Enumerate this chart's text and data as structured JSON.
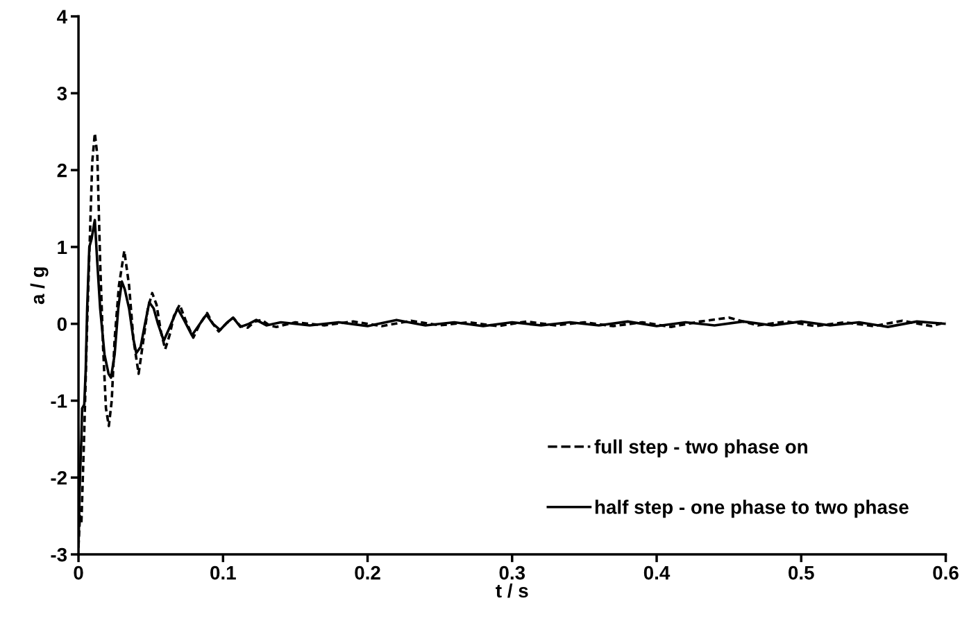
{
  "chart_data": {
    "type": "line",
    "xlabel": "t / s",
    "ylabel": "a / g",
    "xlim": [
      0,
      0.6
    ],
    "xticks": [
      0,
      0.1,
      0.2,
      0.3,
      0.4,
      0.5,
      0.6
    ],
    "ylim": [
      -3,
      4
    ],
    "yticks": [
      -3,
      -2,
      -1,
      0,
      1,
      2,
      3,
      4
    ],
    "grid": false,
    "legend": "bottom right",
    "marker": "none",
    "series": [
      {
        "name": "full step - two phase on",
        "color": "#000000",
        "line_style": "dashed",
        "x": [
          0,
          0.001,
          0.002,
          0.004,
          0.006,
          0.008,
          0.0095,
          0.0113,
          0.013,
          0.015,
          0.017,
          0.019,
          0.021,
          0.023,
          0.025,
          0.028,
          0.0317,
          0.035,
          0.038,
          0.0416,
          0.045,
          0.048,
          0.051,
          0.054,
          0.057,
          0.06,
          0.063,
          0.066,
          0.07,
          0.074,
          0.0794,
          0.084,
          0.089,
          0.093,
          0.097,
          0.102,
          0.107,
          0.112,
          0.117,
          0.122,
          0.127,
          0.132,
          0.137,
          0.15,
          0.17,
          0.19,
          0.21,
          0.23,
          0.25,
          0.27,
          0.29,
          0.31,
          0.33,
          0.35,
          0.37,
          0.39,
          0.41,
          0.43,
          0.45,
          0.47,
          0.49,
          0.51,
          0.53,
          0.55,
          0.57,
          0.59,
          0.6
        ],
        "values": [
          -2.9,
          -2.5,
          -2.6,
          -1.4,
          0.0,
          1.2,
          2.1,
          2.48,
          2.2,
          0.8,
          -0.3,
          -1.1,
          -1.33,
          -1.0,
          -0.2,
          0.5,
          0.95,
          0.5,
          -0.2,
          -0.65,
          -0.2,
          0.2,
          0.4,
          0.25,
          -0.1,
          -0.33,
          -0.15,
          0.1,
          0.25,
          0.05,
          -0.18,
          0.0,
          0.14,
          0.0,
          -0.1,
          0.0,
          0.08,
          -0.03,
          -0.05,
          0.03,
          0.05,
          -0.02,
          -0.04,
          0.02,
          -0.02,
          0.03,
          -0.03,
          0.04,
          -0.02,
          0.02,
          -0.03,
          0.03,
          -0.02,
          0.02,
          -0.03,
          0.02,
          -0.04,
          0.03,
          0.08,
          -0.02,
          0.03,
          -0.03,
          0.02,
          -0.03,
          0.04,
          -0.03,
          0.02
        ]
      },
      {
        "name": "half step - one phase to two phase",
        "color": "#000000",
        "line_style": "solid",
        "x": [
          0,
          0.001,
          0.002,
          0.0025,
          0.004,
          0.005,
          0.006,
          0.0075,
          0.009,
          0.0113,
          0.013,
          0.015,
          0.018,
          0.0208,
          0.0225,
          0.025,
          0.0275,
          0.03,
          0.032,
          0.035,
          0.038,
          0.04,
          0.043,
          0.046,
          0.049,
          0.052,
          0.055,
          0.059,
          0.063,
          0.0686,
          0.073,
          0.0785,
          0.084,
          0.0885,
          0.093,
          0.098,
          0.103,
          0.107,
          0.112,
          0.118,
          0.123,
          0.13,
          0.14,
          0.16,
          0.18,
          0.2,
          0.22,
          0.24,
          0.26,
          0.28,
          0.3,
          0.32,
          0.34,
          0.36,
          0.38,
          0.4,
          0.42,
          0.44,
          0.46,
          0.48,
          0.5,
          0.52,
          0.54,
          0.56,
          0.58,
          0.6
        ],
        "values": [
          -2.9,
          -2.0,
          -1.5,
          -1.1,
          -1.05,
          -0.6,
          0.2,
          1.0,
          1.1,
          1.35,
          0.8,
          0.2,
          -0.4,
          -0.65,
          -0.7,
          -0.4,
          0.2,
          0.55,
          0.45,
          0.2,
          -0.2,
          -0.38,
          -0.3,
          0.0,
          0.28,
          0.2,
          0.0,
          -0.22,
          -0.05,
          0.2,
          0.05,
          -0.15,
          0.0,
          0.12,
          0.0,
          -0.08,
          0.02,
          0.08,
          -0.04,
          0.0,
          0.05,
          -0.02,
          0.02,
          -0.02,
          0.02,
          -0.03,
          0.05,
          -0.02,
          0.02,
          -0.03,
          0.02,
          -0.02,
          0.02,
          -0.02,
          0.03,
          -0.03,
          0.02,
          -0.02,
          0.03,
          -0.02,
          0.03,
          -0.02,
          0.02,
          -0.04,
          0.03,
          0.0
        ]
      }
    ]
  }
}
